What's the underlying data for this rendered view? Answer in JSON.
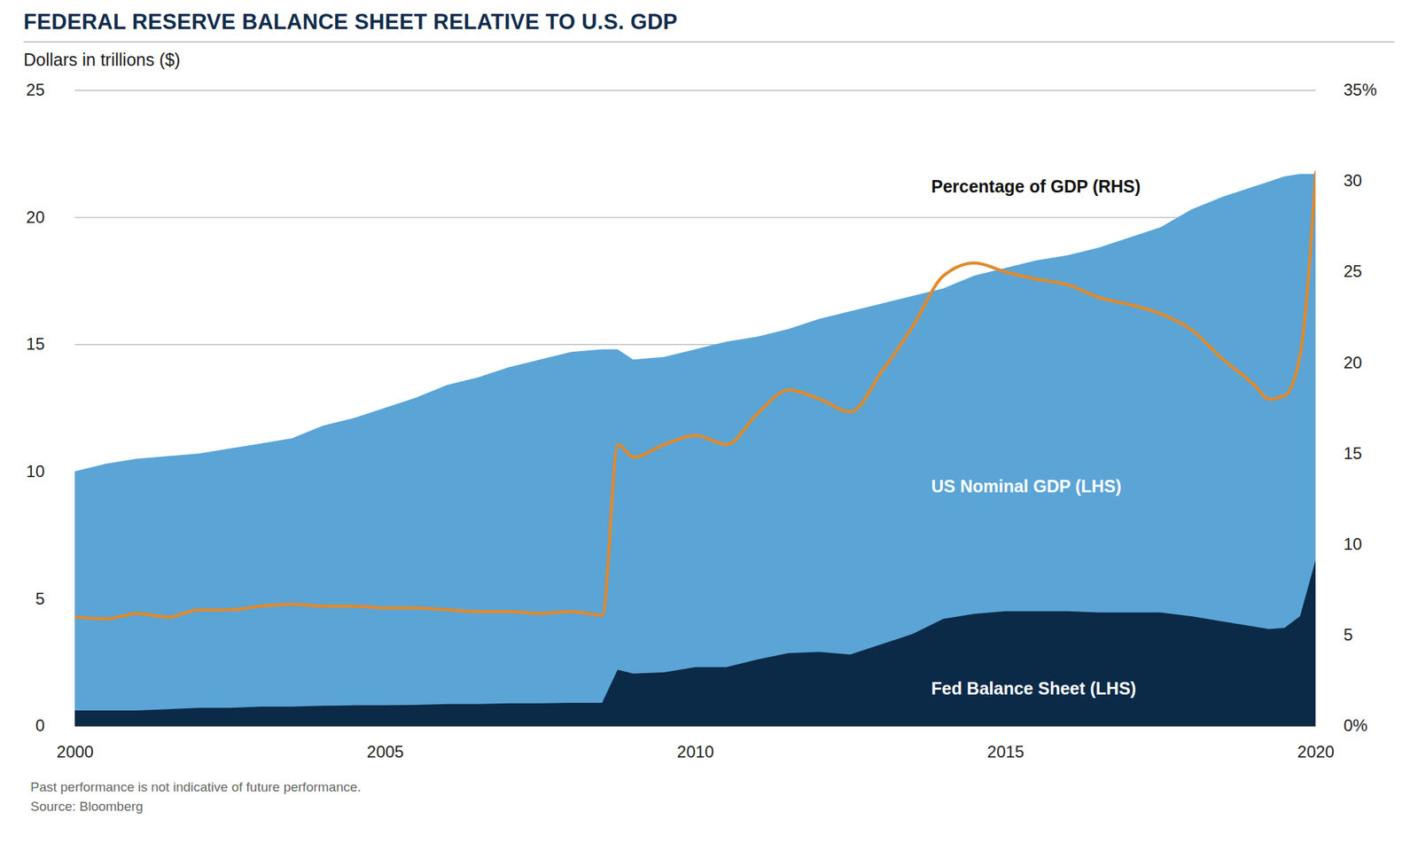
{
  "chart_data": {
    "type": "area",
    "title": "FEDERAL RESERVE BALANCE SHEET RELATIVE TO U.S. GDP",
    "subtitle": "Dollars in trillions ($)",
    "notes": [
      "Past performance is not indicative of future performance.",
      "Source: Bloomberg"
    ],
    "x": [
      2000,
      2000.5,
      2001,
      2001.5,
      2002,
      2002.5,
      2003,
      2003.5,
      2004,
      2004.5,
      2005,
      2005.5,
      2006,
      2006.5,
      2007,
      2007.5,
      2008,
      2008.5,
      2008.75,
      2009,
      2009.5,
      2010,
      2010.5,
      2011,
      2011.5,
      2012,
      2012.5,
      2013,
      2013.5,
      2014,
      2014.5,
      2015,
      2015.5,
      2016,
      2016.5,
      2017,
      2017.5,
      2018,
      2018.5,
      2019,
      2019.25,
      2019.5,
      2019.75,
      2020
    ],
    "series": [
      {
        "name": "US Nominal GDP (LHS)",
        "type": "area",
        "color": "#5ba4d6",
        "label_pos": [
          2013.8,
          9.4
        ],
        "values": [
          10.0,
          10.3,
          10.5,
          10.6,
          10.7,
          10.9,
          11.1,
          11.3,
          11.8,
          12.1,
          12.5,
          12.9,
          13.4,
          13.7,
          14.1,
          14.4,
          14.7,
          14.8,
          14.8,
          14.4,
          14.5,
          14.8,
          15.1,
          15.3,
          15.6,
          16.0,
          16.3,
          16.6,
          16.9,
          17.2,
          17.7,
          18.0,
          18.3,
          18.5,
          18.8,
          19.2,
          19.6,
          20.3,
          20.8,
          21.2,
          21.4,
          21.6,
          21.7,
          21.7
        ]
      },
      {
        "name": "Fed Balance Sheet (LHS)",
        "type": "area",
        "color": "#0b2a48",
        "label_pos": [
          2013.8,
          1.46
        ],
        "values": [
          0.6,
          0.6,
          0.6,
          0.65,
          0.7,
          0.7,
          0.75,
          0.75,
          0.78,
          0.8,
          0.8,
          0.82,
          0.85,
          0.85,
          0.88,
          0.88,
          0.9,
          0.9,
          2.2,
          2.05,
          2.1,
          2.3,
          2.3,
          2.6,
          2.85,
          2.9,
          2.8,
          3.2,
          3.6,
          4.2,
          4.4,
          4.5,
          4.5,
          4.5,
          4.45,
          4.45,
          4.45,
          4.3,
          4.1,
          3.9,
          3.8,
          3.85,
          4.3,
          6.5
        ]
      },
      {
        "name": "Percentage of GDP (RHS)",
        "type": "line",
        "axis": "y2",
        "color": "#e08a2c",
        "label_pos": [
          2013.8,
          29.7
        ],
        "values": [
          6.0,
          5.9,
          6.2,
          6.0,
          6.4,
          6.4,
          6.6,
          6.7,
          6.6,
          6.6,
          6.5,
          6.5,
          6.4,
          6.3,
          6.3,
          6.2,
          6.3,
          6.1,
          15.5,
          14.8,
          15.5,
          16.0,
          15.5,
          17.2,
          18.5,
          18.0,
          17.3,
          19.5,
          22.0,
          24.8,
          25.5,
          25.0,
          24.6,
          24.3,
          23.6,
          23.2,
          22.7,
          21.8,
          20.2,
          18.8,
          18.0,
          18.2,
          20.5,
          30.5
        ]
      }
    ],
    "xlim": [
      2000,
      2020
    ],
    "xticks": [
      2000,
      2005,
      2010,
      2015,
      2020
    ],
    "ylim": [
      0,
      25
    ],
    "yticks": [
      0,
      5,
      10,
      15,
      20,
      25
    ],
    "y2lim": [
      0,
      35
    ],
    "y2ticks": [
      {
        "value": 0,
        "label": "0%"
      },
      5,
      10,
      15,
      20,
      25,
      30,
      {
        "value": 35,
        "label": "35%"
      }
    ],
    "grid": true
  }
}
